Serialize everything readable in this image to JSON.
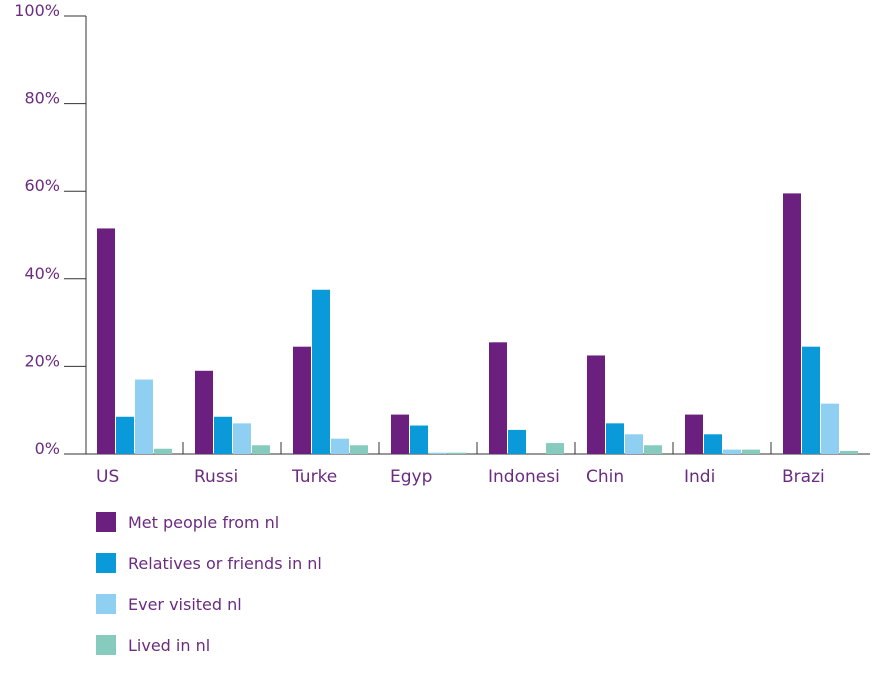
{
  "chart_data": {
    "type": "bar",
    "categories": [
      "US",
      "Russi",
      "Turke",
      "Egyp",
      "Indonesi",
      "Chin",
      "Indi",
      "Brazi"
    ],
    "series": [
      {
        "name": "Met people from nl",
        "color": "#6b2080",
        "values": [
          51.5,
          19,
          24.5,
          9,
          25.5,
          22.5,
          9,
          59.5
        ]
      },
      {
        "name": "Relatives or friends in nl",
        "color": "#0a9ad9",
        "values": [
          8.5,
          8.5,
          37.5,
          6.5,
          5.5,
          7,
          4.5,
          24.5
        ]
      },
      {
        "name": "Ever visited nl",
        "color": "#8fd0f2",
        "values": [
          17,
          7,
          3.5,
          0.3,
          0,
          4.5,
          1,
          11.5
        ]
      },
      {
        "name": "Lived in nl",
        "color": "#86cbbd",
        "values": [
          1.2,
          2,
          2,
          0.3,
          2.5,
          2,
          1,
          0.7
        ]
      }
    ],
    "ylim": [
      0,
      100
    ],
    "yticks": [
      0,
      20,
      40,
      60,
      80,
      100
    ],
    "ytick_labels": [
      "0%",
      "20%",
      "40%",
      "60%",
      "80%",
      "100%"
    ],
    "legend_position": "bottom-left",
    "grid": false,
    "axis_color": "#333333",
    "text_color": "#6b2c80"
  }
}
